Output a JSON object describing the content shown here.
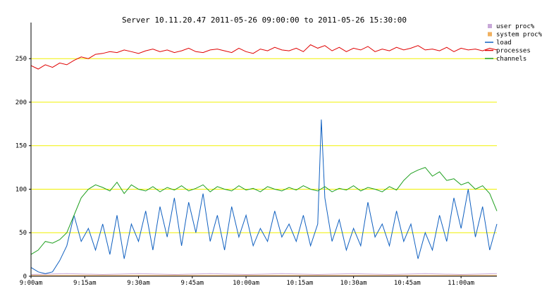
{
  "chart_data": {
    "type": "line",
    "title": "Server 10.11.20.47   2011-05-26 09:00:00 to 2011-05-26 15:30:00",
    "x_tick_labels": [
      "9:00am",
      "9:15am",
      "9:30am",
      "9:45am",
      "10:00am",
      "10:15am",
      "10:30am",
      "10:45am",
      "11:00am"
    ],
    "x_range_minutes_after_9am": [
      0,
      130
    ],
    "ylim": [
      0,
      285
    ],
    "y_ticks": [
      0,
      50,
      100,
      150,
      200,
      250
    ],
    "grid": "horizontal",
    "legend_position": "top-right",
    "series": [
      {
        "name": "user proc%",
        "color": "#c8a8d8",
        "x": [
          0,
          10,
          20,
          30,
          40,
          50,
          60,
          70,
          80,
          90,
          100,
          110,
          120,
          130
        ],
        "values": [
          2,
          3,
          2,
          3,
          2,
          3,
          2,
          3,
          2,
          3,
          2,
          3,
          2,
          3
        ]
      },
      {
        "name": "system proc%",
        "color": "#f0b060",
        "x": [
          0,
          10,
          20,
          30,
          40,
          50,
          60,
          70,
          80,
          90,
          100,
          110,
          120,
          130
        ],
        "values": [
          1,
          1,
          1,
          1,
          1,
          1,
          1,
          1,
          1,
          1,
          1,
          1,
          1,
          1
        ]
      },
      {
        "name": "load",
        "color": "#1060c0",
        "x": [
          0,
          2,
          4,
          6,
          8,
          10,
          12,
          14,
          16,
          18,
          20,
          22,
          24,
          26,
          28,
          30,
          32,
          34,
          36,
          38,
          40,
          42,
          44,
          46,
          48,
          50,
          52,
          54,
          56,
          58,
          60,
          62,
          64,
          66,
          68,
          70,
          72,
          74,
          76,
          78,
          80,
          81,
          82,
          84,
          86,
          88,
          90,
          92,
          94,
          96,
          98,
          100,
          102,
          104,
          106,
          108,
          110,
          112,
          114,
          116,
          118,
          120,
          122,
          124,
          126,
          128,
          130
        ],
        "values": [
          10,
          5,
          3,
          5,
          18,
          35,
          70,
          40,
          55,
          30,
          60,
          25,
          70,
          20,
          60,
          40,
          75,
          30,
          80,
          45,
          90,
          35,
          85,
          50,
          95,
          40,
          70,
          30,
          80,
          45,
          70,
          35,
          55,
          40,
          75,
          45,
          60,
          40,
          70,
          35,
          60,
          180,
          90,
          40,
          65,
          30,
          55,
          35,
          85,
          45,
          60,
          35,
          75,
          40,
          60,
          20,
          50,
          30,
          70,
          40,
          90,
          55,
          100,
          45,
          80,
          30,
          60
        ]
      },
      {
        "name": "processes",
        "color": "#e00000",
        "x": [
          0,
          2,
          4,
          6,
          8,
          10,
          12,
          14,
          16,
          18,
          20,
          22,
          24,
          26,
          28,
          30,
          32,
          34,
          36,
          38,
          40,
          42,
          44,
          46,
          48,
          50,
          52,
          54,
          56,
          58,
          60,
          62,
          64,
          66,
          68,
          70,
          72,
          74,
          76,
          78,
          80,
          82,
          84,
          86,
          88,
          90,
          92,
          94,
          96,
          98,
          100,
          102,
          104,
          106,
          108,
          110,
          112,
          114,
          116,
          118,
          120,
          122,
          124,
          126,
          128,
          130
        ],
        "values": [
          242,
          238,
          243,
          240,
          245,
          243,
          248,
          252,
          250,
          255,
          256,
          258,
          257,
          260,
          258,
          256,
          259,
          261,
          258,
          260,
          257,
          259,
          262,
          258,
          257,
          260,
          261,
          259,
          257,
          262,
          258,
          256,
          261,
          259,
          263,
          260,
          259,
          262,
          258,
          266,
          262,
          265,
          259,
          263,
          258,
          262,
          260,
          264,
          258,
          261,
          259,
          263,
          260,
          262,
          265,
          260,
          261,
          259,
          263,
          258,
          262,
          260,
          261,
          259,
          262,
          260
        ]
      },
      {
        "name": "channels",
        "color": "#20a020",
        "x": [
          0,
          2,
          4,
          6,
          8,
          10,
          12,
          14,
          16,
          18,
          20,
          22,
          24,
          26,
          28,
          30,
          32,
          34,
          36,
          38,
          40,
          42,
          44,
          46,
          48,
          50,
          52,
          54,
          56,
          58,
          60,
          62,
          64,
          66,
          68,
          70,
          72,
          74,
          76,
          78,
          80,
          82,
          84,
          86,
          88,
          90,
          92,
          94,
          96,
          98,
          100,
          102,
          104,
          106,
          108,
          110,
          112,
          114,
          116,
          118,
          120,
          122,
          124,
          126,
          128,
          130
        ],
        "values": [
          25,
          30,
          40,
          38,
          42,
          50,
          70,
          90,
          100,
          105,
          102,
          98,
          108,
          95,
          105,
          100,
          98,
          103,
          97,
          102,
          99,
          104,
          98,
          101,
          105,
          97,
          103,
          100,
          98,
          104,
          99,
          101,
          97,
          103,
          100,
          98,
          102,
          99,
          104,
          100,
          98,
          103,
          97,
          101,
          99,
          104,
          98,
          102,
          100,
          97,
          103,
          99,
          110,
          118,
          122,
          125,
          115,
          120,
          110,
          112,
          105,
          108,
          100,
          104,
          95,
          75
        ]
      }
    ]
  }
}
